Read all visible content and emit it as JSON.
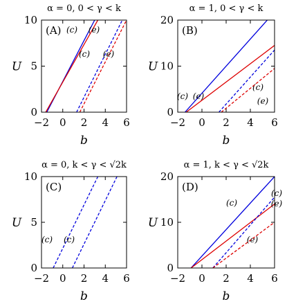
{
  "colors": {
    "blue": "#0000dd",
    "red": "#dd0000"
  },
  "chart_data": [
    {
      "type": "line",
      "title": "α = 0,    0 < γ < k",
      "panel_label": "(A)",
      "xlabel": "b",
      "ylabel": "U",
      "xlim": [
        -2,
        6
      ],
      "ylim": [
        0,
        10
      ],
      "xticks": [
        "−2",
        "0",
        "2",
        "4",
        "6"
      ],
      "yticks": [
        "0",
        "5",
        "10"
      ],
      "series": [
        {
          "label": "(c)",
          "color": "blue",
          "dash": false,
          "x": [
            -1.5,
            3.0
          ],
          "y": [
            0,
            10
          ]
        },
        {
          "label": "(e)",
          "color": "red",
          "dash": false,
          "x": [
            -1.6,
            3.3
          ],
          "y": [
            0,
            10
          ]
        },
        {
          "label": "(c)",
          "color": "blue",
          "dash": true,
          "x": [
            1.3,
            5.6
          ],
          "y": [
            0,
            10
          ]
        },
        {
          "label": "(e)",
          "color": "red",
          "dash": true,
          "x": [
            1.6,
            6.0
          ],
          "y": [
            0,
            10
          ]
        }
      ]
    },
    {
      "type": "line",
      "title": "α = 1,    0 < γ < k",
      "panel_label": "(B)",
      "xlabel": "b",
      "ylabel": "U",
      "xlim": [
        -2,
        6
      ],
      "ylim": [
        0,
        20
      ],
      "xticks": [
        "−2",
        "0",
        "2",
        "4",
        "6"
      ],
      "yticks": [
        "0",
        "10",
        "20"
      ],
      "series": [
        {
          "label": "(c)",
          "color": "blue",
          "dash": false,
          "x": [
            -1.4,
            5.4
          ],
          "y": [
            0,
            20
          ]
        },
        {
          "label": "(e)",
          "color": "red",
          "dash": false,
          "x": [
            -1.3,
            6.0
          ],
          "y": [
            0,
            14.5
          ]
        },
        {
          "label": "(c)",
          "color": "blue",
          "dash": true,
          "x": [
            1.4,
            6.0
          ],
          "y": [
            0,
            13.5
          ]
        },
        {
          "label": "(e)",
          "color": "red",
          "dash": true,
          "x": [
            1.6,
            6.0
          ],
          "y": [
            0,
            9.5
          ]
        }
      ]
    },
    {
      "type": "line",
      "title": "α = 0,    k < γ < √2k",
      "panel_label": "(C)",
      "xlabel": "b",
      "ylabel": "U",
      "xlim": [
        -2,
        6
      ],
      "ylim": [
        0,
        10
      ],
      "xticks": [
        "−2",
        "0",
        "2",
        "4",
        "6"
      ],
      "yticks": [
        "0",
        "5",
        "10"
      ],
      "series": [
        {
          "label": "(c)",
          "color": "blue",
          "dash": true,
          "x": [
            -0.9,
            3.3
          ],
          "y": [
            0,
            10
          ]
        },
        {
          "label": "(c)",
          "color": "blue",
          "dash": true,
          "x": [
            0.9,
            5.1
          ],
          "y": [
            0,
            10
          ]
        }
      ]
    },
    {
      "type": "line",
      "title": "α = 1,    k < γ < √2k",
      "panel_label": "(D)",
      "xlabel": "b",
      "ylabel": "U",
      "xlim": [
        -2,
        6
      ],
      "ylim": [
        0,
        20
      ],
      "xticks": [
        "−2",
        "0",
        "2",
        "4",
        "6"
      ],
      "yticks": [
        "0",
        "10",
        "20"
      ],
      "series": [
        {
          "label": "(c)",
          "color": "blue",
          "dash": false,
          "x": [
            -0.9,
            6.0
          ],
          "y": [
            0,
            20
          ]
        },
        {
          "label": "(e)",
          "color": "red",
          "dash": false,
          "x": [
            -0.9,
            6.0
          ],
          "y": [
            0,
            14.0
          ]
        },
        {
          "label": "(c)",
          "color": "blue",
          "dash": true,
          "x": [
            0.9,
            6.0
          ],
          "y": [
            0,
            15.5
          ]
        },
        {
          "label": "(e)",
          "color": "red",
          "dash": true,
          "x": [
            0.9,
            6.0
          ],
          "y": [
            0,
            10.0
          ]
        }
      ]
    }
  ]
}
